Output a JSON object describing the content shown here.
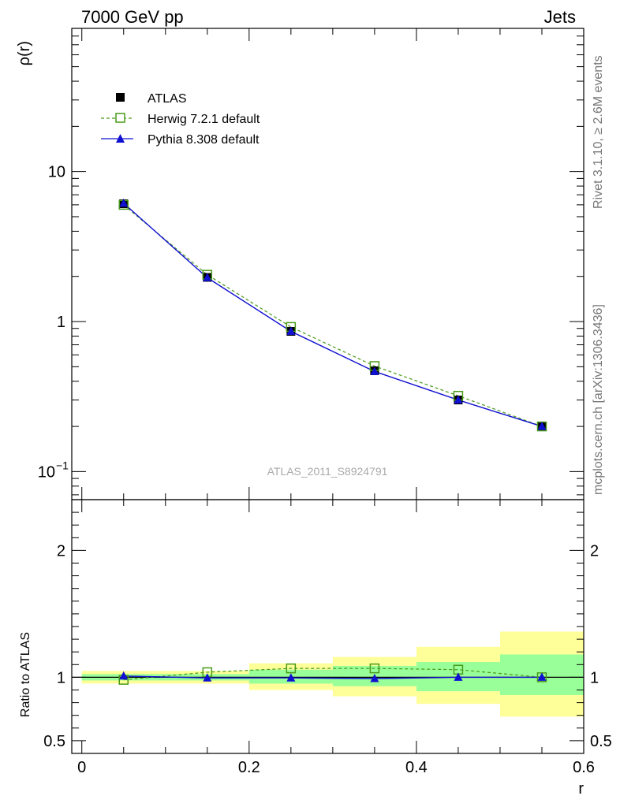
{
  "header": {
    "left_label": "7000 GeV pp",
    "right_label": "Jets"
  },
  "side_labels": {
    "rivet": "Rivet 3.1.10, ≥ 2.6M events",
    "mcplots": "mcplots.cern.ch [arXiv:1306.3436]"
  },
  "watermark": "ATLAS_2011_S8924791",
  "colors": {
    "atlas": "#000000",
    "herwig": "#4a9a1a",
    "pythia": "#1010d0",
    "band_inner": "#99ff99",
    "band_outer": "#ffff99"
  },
  "legend": {
    "placement": "top-left",
    "entries": [
      {
        "label": "ATLAS",
        "marker": "filled-square"
      },
      {
        "label": "Herwig 7.2.1 default",
        "marker": "open-square-dashed"
      },
      {
        "label": "Pythia 8.308 default",
        "marker": "filled-triangle-solid"
      }
    ]
  },
  "chart_data": [
    {
      "type": "line",
      "panel": "main",
      "ylabel": "ρ(r)",
      "xlabel": "",
      "yscale": "log",
      "ylim": [
        0.065,
        90
      ],
      "xlim": [
        -0.012,
        0.6
      ],
      "y_ticks": [
        {
          "value": 0.1,
          "label": "10",
          "exp": "−1"
        },
        {
          "value": 1,
          "label": "1",
          "exp": ""
        },
        {
          "value": 10,
          "label": "10",
          "exp": ""
        }
      ],
      "x": [
        0.05,
        0.15,
        0.25,
        0.35,
        0.45,
        0.55
      ],
      "series": [
        {
          "name": "ATLAS",
          "values": [
            6.1,
            1.97,
            0.86,
            0.47,
            0.3,
            0.2
          ]
        },
        {
          "name": "Herwig 7.2.1 default",
          "values": [
            6.0,
            2.05,
            0.92,
            0.505,
            0.32,
            0.2
          ]
        },
        {
          "name": "Pythia 8.308 default",
          "values": [
            6.15,
            1.96,
            0.86,
            0.465,
            0.3,
            0.2
          ]
        }
      ]
    },
    {
      "type": "line",
      "panel": "ratio",
      "ylabel": "Ratio to ATLAS",
      "xlabel": "r",
      "ylim": [
        0.4,
        2.4
      ],
      "xlim": [
        -0.012,
        0.6
      ],
      "x_ticks": [
        0,
        0.2,
        0.4,
        0.6
      ],
      "x_tick_labels": [
        "0",
        "0.2",
        "0.4",
        "0.6"
      ],
      "y_ticks": [
        0.5,
        1,
        2
      ],
      "y_tick_labels": [
        "0.5",
        "1",
        "2"
      ],
      "bins": [
        [
          0.0,
          0.1
        ],
        [
          0.1,
          0.2
        ],
        [
          0.2,
          0.3
        ],
        [
          0.3,
          0.4
        ],
        [
          0.4,
          0.5
        ],
        [
          0.5,
          0.6
        ]
      ],
      "band_inner": [
        [
          0.975,
          1.025
        ],
        [
          0.975,
          1.025
        ],
        [
          0.95,
          1.06
        ],
        [
          0.93,
          1.09
        ],
        [
          0.89,
          1.12
        ],
        [
          0.86,
          1.18
        ]
      ],
      "band_outer": [
        [
          0.95,
          1.05
        ],
        [
          0.95,
          1.05
        ],
        [
          0.9,
          1.11
        ],
        [
          0.85,
          1.16
        ],
        [
          0.79,
          1.24
        ],
        [
          0.69,
          1.36
        ]
      ],
      "series": [
        {
          "name": "Herwig 7.2.1 default",
          "values": [
            0.98,
            1.04,
            1.07,
            1.07,
            1.06,
            1.0
          ]
        },
        {
          "name": "Pythia 8.308 default",
          "values": [
            1.01,
            0.995,
            0.995,
            0.99,
            1.0,
            1.0
          ]
        }
      ]
    }
  ]
}
